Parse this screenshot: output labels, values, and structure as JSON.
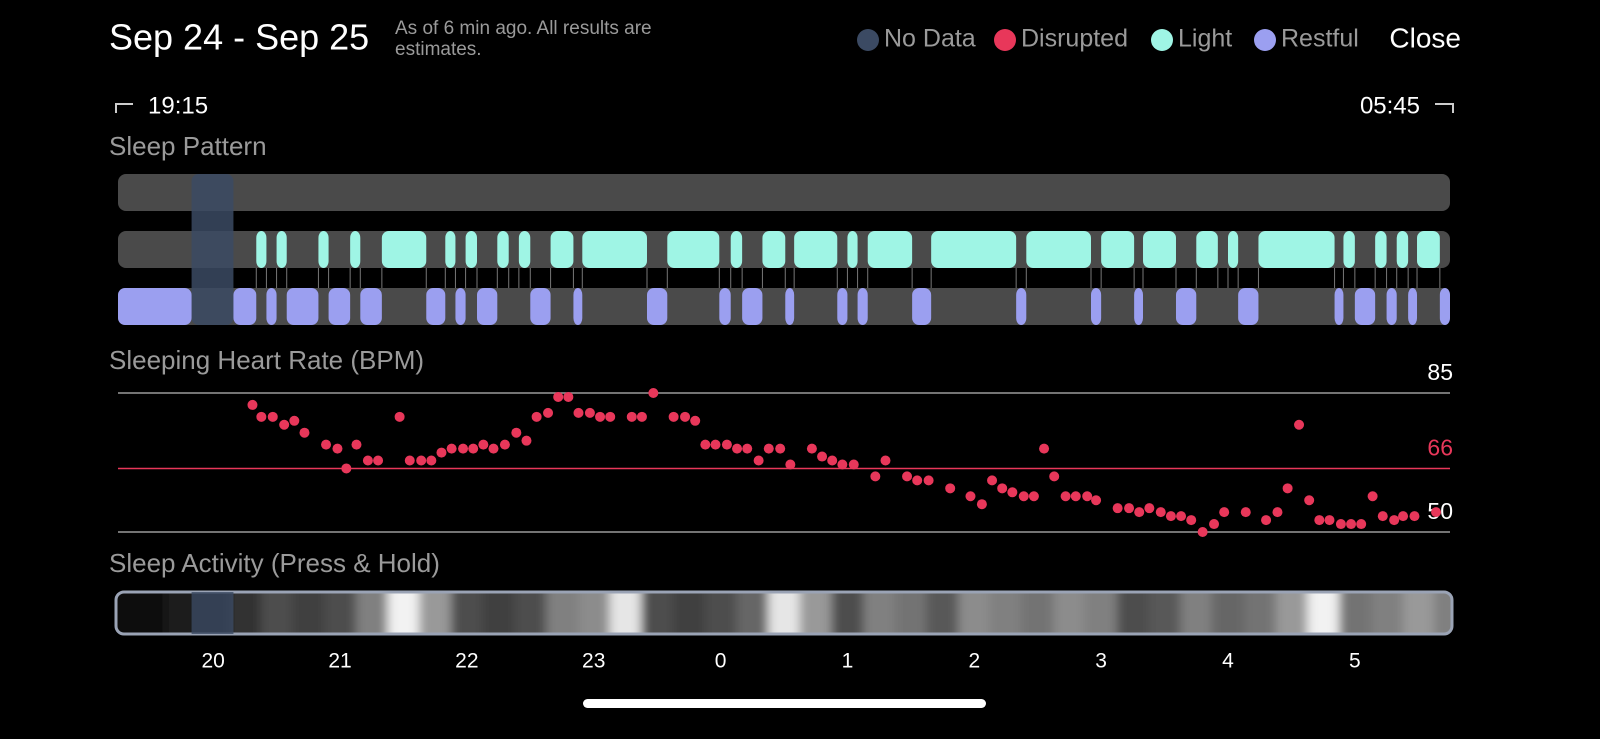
{
  "header": {
    "title": "Sep 24 - Sep 25",
    "subtitle": "As of 6 min ago. All results are estimates.",
    "close": "Close"
  },
  "range": {
    "start": "19:15",
    "end": "05:45"
  },
  "chart_data": [
    {
      "type": "timeline",
      "title": "Sleep Pattern",
      "xlim": [
        19.25,
        29.75
      ],
      "series": [
        {
          "name": "No Data",
          "color": "#3b4a63",
          "segments": [
            [
              19.83,
              20.16
            ]
          ]
        },
        {
          "name": "Light",
          "color": "#9ff5e5",
          "segments": [
            [
              20.34,
              20.42
            ],
            [
              20.5,
              20.58
            ],
            [
              20.83,
              20.91
            ],
            [
              21.08,
              21.16
            ],
            [
              21.33,
              21.68
            ],
            [
              21.83,
              21.91
            ],
            [
              21.99,
              22.08
            ],
            [
              22.24,
              22.33
            ],
            [
              22.41,
              22.5
            ],
            [
              22.66,
              22.84
            ],
            [
              22.91,
              23.42
            ],
            [
              23.58,
              23.99
            ],
            [
              24.08,
              24.17
            ],
            [
              24.33,
              24.51
            ],
            [
              24.58,
              24.92
            ],
            [
              25.0,
              25.08
            ],
            [
              25.16,
              25.51
            ],
            [
              25.66,
              26.33
            ],
            [
              26.41,
              26.92
            ],
            [
              27.0,
              27.26
            ],
            [
              27.33,
              27.59
            ],
            [
              27.75,
              27.92
            ],
            [
              28.0,
              28.08
            ],
            [
              28.24,
              28.84
            ],
            [
              28.91,
              29.0
            ],
            [
              29.16,
              29.25
            ],
            [
              29.33,
              29.42
            ],
            [
              29.49,
              29.67
            ]
          ]
        },
        {
          "name": "Restful",
          "color": "#9b9ff0",
          "segments": [
            [
              19.25,
              19.83
            ],
            [
              20.16,
              20.34
            ],
            [
              20.42,
              20.5
            ],
            [
              20.58,
              20.83
            ],
            [
              20.91,
              21.08
            ],
            [
              21.16,
              21.33
            ],
            [
              21.68,
              21.83
            ],
            [
              21.91,
              21.99
            ],
            [
              22.08,
              22.24
            ],
            [
              22.5,
              22.66
            ],
            [
              22.84,
              22.91
            ],
            [
              23.42,
              23.58
            ],
            [
              23.99,
              24.08
            ],
            [
              24.17,
              24.33
            ],
            [
              24.51,
              24.58
            ],
            [
              24.92,
              25.0
            ],
            [
              25.08,
              25.16
            ],
            [
              25.51,
              25.66
            ],
            [
              26.33,
              26.41
            ],
            [
              26.92,
              27.0
            ],
            [
              27.26,
              27.33
            ],
            [
              27.59,
              27.75
            ],
            [
              28.08,
              28.24
            ],
            [
              28.84,
              28.91
            ],
            [
              29.0,
              29.16
            ],
            [
              29.25,
              29.33
            ],
            [
              29.42,
              29.49
            ],
            [
              29.67,
              29.75
            ]
          ]
        }
      ]
    },
    {
      "type": "scatter",
      "title": "Sleeping Heart Rate (BPM)",
      "xlim": [
        19.25,
        29.75
      ],
      "ylim": [
        50,
        85
      ],
      "yticks": [
        50,
        85
      ],
      "average": 66,
      "series": [
        {
          "name": "Disrupted",
          "color": "#e8375a",
          "x": [
            20.31,
            20.38,
            20.47,
            20.56,
            20.64,
            20.72,
            20.89,
            20.98,
            21.05,
            21.13,
            21.22,
            21.3,
            21.47,
            21.55,
            21.64,
            21.72,
            21.8,
            21.88,
            21.97,
            22.05,
            22.13,
            22.21,
            22.3,
            22.39,
            22.47,
            22.55,
            22.64,
            22.72,
            22.8,
            22.88,
            22.97,
            23.05,
            23.13,
            23.3,
            23.38,
            23.47,
            23.63,
            23.72,
            23.8,
            23.88,
            23.96,
            24.05,
            24.13,
            24.21,
            24.3,
            24.38,
            24.47,
            24.55,
            24.72,
            24.8,
            24.88,
            24.96,
            25.05,
            25.22,
            25.3,
            25.47,
            25.55,
            25.64,
            25.81,
            25.97,
            26.06,
            26.14,
            26.22,
            26.3,
            26.39,
            26.47,
            26.55,
            26.63,
            26.72,
            26.8,
            26.89,
            26.96,
            27.13,
            27.22,
            27.3,
            27.38,
            27.47,
            27.55,
            27.63,
            27.71,
            27.8,
            27.89,
            27.97,
            28.14,
            28.3,
            28.39,
            28.47,
            28.56,
            28.64,
            28.72,
            28.8,
            28.89,
            28.97,
            29.05,
            29.14,
            29.22,
            29.31,
            29.38,
            29.47,
            29.64
          ],
          "values": [
            82,
            79,
            79,
            77,
            78,
            75,
            72,
            71,
            66,
            72,
            68,
            68,
            79,
            68,
            68,
            68,
            70,
            71,
            71,
            71,
            72,
            71,
            72,
            75,
            73,
            79,
            80,
            84,
            84,
            80,
            80,
            79,
            79,
            79,
            79,
            85,
            79,
            79,
            78,
            72,
            72,
            72,
            71,
            71,
            68,
            71,
            71,
            67,
            71,
            69,
            68,
            67,
            67,
            64,
            68,
            64,
            63,
            63,
            61,
            59,
            57,
            63,
            61,
            60,
            59,
            59,
            71,
            64,
            59,
            59,
            59,
            58,
            56,
            56,
            55,
            56,
            55,
            54,
            54,
            53,
            50,
            52,
            55,
            55,
            53,
            55,
            61,
            77,
            58,
            53,
            53,
            52,
            52,
            52,
            59,
            54,
            53,
            54,
            54,
            55
          ]
        }
      ]
    },
    {
      "type": "heatmap",
      "title": "Sleep Activity (Press & Hold)",
      "xlim": [
        19.25,
        29.75
      ],
      "xticks": [
        20,
        21,
        22,
        23,
        {
          "value": 24,
          "label": "0"
        },
        {
          "value": 25,
          "label": "1"
        },
        {
          "value": 26,
          "label": "2"
        },
        {
          "value": 27,
          "label": "3"
        },
        {
          "value": 28,
          "label": "4"
        },
        {
          "value": 29,
          "label": "5"
        }
      ],
      "x": [
        19.25,
        19.5,
        19.75,
        20,
        20.25,
        20.5,
        20.75,
        21,
        21.25,
        21.5,
        21.75,
        22,
        22.25,
        22.5,
        22.75,
        23,
        23.25,
        23.5,
        23.75,
        24,
        24.25,
        24.5,
        24.75,
        25,
        25.25,
        25.5,
        25.75,
        26,
        26.25,
        26.5,
        26.75,
        27,
        27.25,
        27.5,
        27.75,
        28,
        28.25,
        28.5,
        28.75,
        29,
        29.25,
        29.5,
        29.75
      ],
      "values": [
        0.05,
        0.05,
        0.1,
        0.1,
        0.2,
        0.3,
        0.25,
        0.3,
        0.5,
        0.95,
        0.6,
        0.3,
        0.25,
        0.3,
        0.5,
        0.55,
        0.9,
        0.3,
        0.25,
        0.3,
        0.4,
        0.9,
        0.6,
        0.3,
        0.5,
        0.45,
        0.35,
        0.55,
        0.5,
        0.45,
        0.55,
        0.5,
        0.3,
        0.35,
        0.5,
        0.4,
        0.45,
        0.6,
        0.95,
        0.45,
        0.5,
        0.6,
        0.5
      ]
    }
  ]
}
